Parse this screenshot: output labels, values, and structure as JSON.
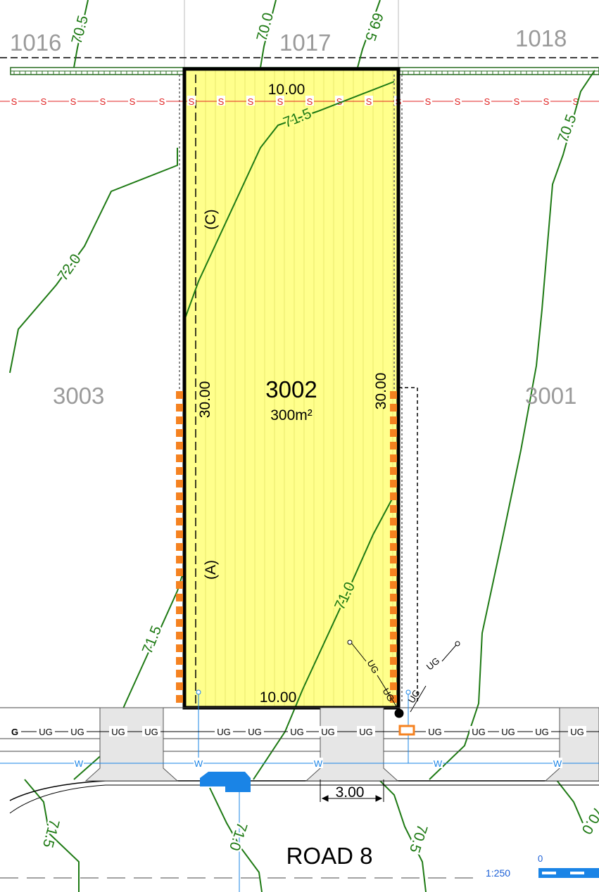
{
  "lots": {
    "subject": {
      "number": "3002",
      "area": "300m²"
    },
    "left": "3003",
    "right": "3001",
    "top_left": "1016",
    "top_center": "1017",
    "top_right": "1018"
  },
  "dimensions": {
    "top": "10.00",
    "bottom": "10.00",
    "left": "30.00",
    "right": "30.00",
    "crossover": "3.00"
  },
  "easements": {
    "upper": "(C)",
    "lower": "(A)"
  },
  "contours": {
    "c705_top_left": "70.5",
    "c700_top": "70.0",
    "c695_top": "69.5",
    "c715_inner": "71.5",
    "c705_right": "70.5",
    "c720_left": "72.0",
    "c715_left": "71.5",
    "c710_inner": "71.0",
    "c715_bottom": "71.5",
    "c710_bottom": "71.0",
    "c705_bottom": "70.5",
    "c700_bottom_right": "70.0"
  },
  "services": {
    "sewer_code": "S",
    "underground_code": "UG",
    "underground_code_truncated": "G",
    "water_code": "W"
  },
  "road": {
    "name": "ROAD 8"
  },
  "scale": {
    "ratio": "1:250",
    "zero": "0"
  },
  "colors": {
    "lot_fill": "#ffff8c",
    "contour": "#1e7a14",
    "sewer": "#e02020",
    "water": "#1a84e6",
    "retaining_wall": "#f58220",
    "lot_label": "#9a9a9a",
    "driveway": "#e6e6e6"
  }
}
